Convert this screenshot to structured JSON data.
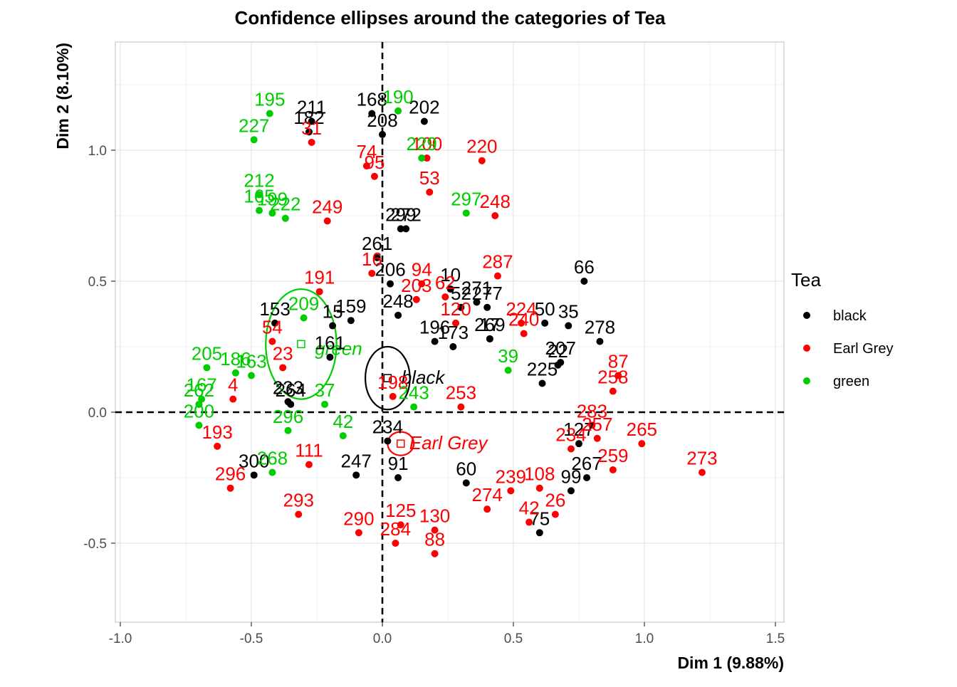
{
  "chart_data": {
    "type": "scatter",
    "title": "Confidence ellipses around the categories of Tea",
    "xlabel": "Dim 1 (9.88%)",
    "ylabel": "Dim 2 (8.10%)",
    "xlim": [
      -1.0,
      1.5
    ],
    "ylim": [
      -0.75,
      1.4
    ],
    "x_ticks": [
      -1.0,
      -0.5,
      0.0,
      0.5,
      1.0,
      1.5
    ],
    "x_tick_labels": [
      "-1.0",
      "-0.5",
      "0.0",
      "0.5",
      "1.0",
      "1.5"
    ],
    "y_ticks": [
      -0.5,
      0.0,
      0.5,
      1.0
    ],
    "y_tick_labels": [
      "-0.5",
      "0.0",
      "0.5",
      "1.0"
    ],
    "grid": true,
    "reference_lines": {
      "x": 0,
      "y": 0,
      "style": "dashed"
    },
    "legend": {
      "title": "Tea",
      "position": "right",
      "entries": [
        {
          "name": "black",
          "color": "#000000"
        },
        {
          "name": "Earl Grey",
          "color": "#ff0000"
        },
        {
          "name": "green",
          "color": "#00cd00"
        }
      ]
    },
    "series": [
      {
        "name": "black",
        "color": "#000000",
        "points": [
          {
            "label": "168",
            "x": -0.04,
            "y": 1.14
          },
          {
            "label": "202",
            "x": 0.16,
            "y": 1.11
          },
          {
            "label": "208",
            "x": 0.0,
            "y": 1.06
          },
          {
            "label": "211",
            "x": -0.27,
            "y": 1.11
          },
          {
            "label": "182",
            "x": -0.28,
            "y": 1.07
          },
          {
            "label": "272",
            "x": 0.09,
            "y": 0.7
          },
          {
            "label": "299",
            "x": 0.07,
            "y": 0.7
          },
          {
            "label": "261",
            "x": -0.02,
            "y": 0.59
          },
          {
            "label": "206",
            "x": 0.03,
            "y": 0.49
          },
          {
            "label": "10",
            "x": 0.26,
            "y": 0.47
          },
          {
            "label": "271",
            "x": 0.36,
            "y": 0.42
          },
          {
            "label": "277",
            "x": 0.4,
            "y": 0.4
          },
          {
            "label": "52",
            "x": 0.3,
            "y": 0.4
          },
          {
            "label": "66",
            "x": 0.77,
            "y": 0.5
          },
          {
            "label": "50",
            "x": 0.62,
            "y": 0.34
          },
          {
            "label": "35",
            "x": 0.71,
            "y": 0.33
          },
          {
            "label": "278",
            "x": 0.83,
            "y": 0.27
          },
          {
            "label": "207",
            "x": 0.68,
            "y": 0.19
          },
          {
            "label": "22",
            "x": 0.67,
            "y": 0.18
          },
          {
            "label": "225",
            "x": 0.61,
            "y": 0.11
          },
          {
            "label": "269",
            "x": 0.41,
            "y": 0.28
          },
          {
            "label": "17",
            "x": 0.41,
            "y": 0.28
          },
          {
            "label": "173",
            "x": 0.27,
            "y": 0.25
          },
          {
            "label": "196",
            "x": 0.2,
            "y": 0.27
          },
          {
            "label": "248",
            "x": 0.06,
            "y": 0.37
          },
          {
            "label": "159",
            "x": -0.12,
            "y": 0.35
          },
          {
            "label": "153",
            "x": -0.41,
            "y": 0.34
          },
          {
            "label": "15",
            "x": -0.19,
            "y": 0.33
          },
          {
            "label": "161",
            "x": -0.2,
            "y": 0.21
          },
          {
            "label": "233",
            "x": -0.36,
            "y": 0.04
          },
          {
            "label": "264",
            "x": -0.35,
            "y": 0.03
          },
          {
            "label": "300",
            "x": -0.49,
            "y": -0.24
          },
          {
            "label": "234",
            "x": 0.02,
            "y": -0.11
          },
          {
            "label": "247",
            "x": -0.1,
            "y": -0.24
          },
          {
            "label": "60",
            "x": 0.32,
            "y": -0.27
          },
          {
            "label": "267",
            "x": 0.78,
            "y": -0.25
          },
          {
            "label": "127",
            "x": 0.75,
            "y": -0.12
          },
          {
            "label": "99",
            "x": 0.72,
            "y": -0.3
          },
          {
            "label": "75",
            "x": 0.6,
            "y": -0.46
          },
          {
            "label": "91",
            "x": 0.06,
            "y": -0.25
          }
        ]
      },
      {
        "name": "Earl Grey",
        "color": "#ff0000",
        "points": [
          {
            "label": "31",
            "x": -0.27,
            "y": 1.03
          },
          {
            "label": "74",
            "x": -0.06,
            "y": 0.94
          },
          {
            "label": "95",
            "x": -0.03,
            "y": 0.9
          },
          {
            "label": "100",
            "x": 0.17,
            "y": 0.97
          },
          {
            "label": "220",
            "x": 0.38,
            "y": 0.96
          },
          {
            "label": "53",
            "x": 0.18,
            "y": 0.84
          },
          {
            "label": "248",
            "x": 0.43,
            "y": 0.75
          },
          {
            "label": "249",
            "x": -0.21,
            "y": 0.73
          },
          {
            "label": "16",
            "x": -0.04,
            "y": 0.53
          },
          {
            "label": "94",
            "x": 0.15,
            "y": 0.49
          },
          {
            "label": "287",
            "x": 0.44,
            "y": 0.52
          },
          {
            "label": "203",
            "x": 0.13,
            "y": 0.43
          },
          {
            "label": "62",
            "x": 0.24,
            "y": 0.44
          },
          {
            "label": "120",
            "x": 0.28,
            "y": 0.34
          },
          {
            "label": "224",
            "x": 0.53,
            "y": 0.34
          },
          {
            "label": "240",
            "x": 0.54,
            "y": 0.3
          },
          {
            "label": "191",
            "x": -0.24,
            "y": 0.46
          },
          {
            "label": "54",
            "x": -0.42,
            "y": 0.27
          },
          {
            "label": "23",
            "x": -0.38,
            "y": 0.17
          },
          {
            "label": "4",
            "x": -0.57,
            "y": 0.05
          },
          {
            "label": "87",
            "x": 0.9,
            "y": 0.14
          },
          {
            "label": "258",
            "x": 0.88,
            "y": 0.08
          },
          {
            "label": "253",
            "x": 0.3,
            "y": 0.02
          },
          {
            "label": "198",
            "x": 0.04,
            "y": 0.06
          },
          {
            "label": "265",
            "x": 0.99,
            "y": -0.12
          },
          {
            "label": "273",
            "x": 1.22,
            "y": -0.23
          },
          {
            "label": "259",
            "x": 0.88,
            "y": -0.22
          },
          {
            "label": "283",
            "x": 0.8,
            "y": -0.05
          },
          {
            "label": "257",
            "x": 0.82,
            "y": -0.1
          },
          {
            "label": "234",
            "x": 0.72,
            "y": -0.14
          },
          {
            "label": "293",
            "x": -0.32,
            "y": -0.39
          },
          {
            "label": "290",
            "x": -0.09,
            "y": -0.46
          },
          {
            "label": "125",
            "x": 0.07,
            "y": -0.43
          },
          {
            "label": "130",
            "x": 0.2,
            "y": -0.45
          },
          {
            "label": "284",
            "x": 0.05,
            "y": -0.5
          },
          {
            "label": "88",
            "x": 0.2,
            "y": -0.54
          },
          {
            "label": "274",
            "x": 0.4,
            "y": -0.37
          },
          {
            "label": "239",
            "x": 0.49,
            "y": -0.3
          },
          {
            "label": "108",
            "x": 0.6,
            "y": -0.29
          },
          {
            "label": "26",
            "x": 0.66,
            "y": -0.39
          },
          {
            "label": "42",
            "x": 0.56,
            "y": -0.42
          },
          {
            "label": "193",
            "x": -0.63,
            "y": -0.13
          },
          {
            "label": "296",
            "x": -0.58,
            "y": -0.29
          },
          {
            "label": "111",
            "x": -0.28,
            "y": -0.2
          }
        ]
      },
      {
        "name": "green",
        "color": "#00cd00",
        "points": [
          {
            "label": "195",
            "x": -0.43,
            "y": 1.14
          },
          {
            "label": "227",
            "x": -0.49,
            "y": 1.04
          },
          {
            "label": "190",
            "x": 0.06,
            "y": 1.15
          },
          {
            "label": "229",
            "x": 0.15,
            "y": 0.97
          },
          {
            "label": "212",
            "x": -0.47,
            "y": 0.83
          },
          {
            "label": "165",
            "x": -0.47,
            "y": 0.77
          },
          {
            "label": "199",
            "x": -0.42,
            "y": 0.76
          },
          {
            "label": "222",
            "x": -0.37,
            "y": 0.74
          },
          {
            "label": "297",
            "x": 0.32,
            "y": 0.76
          },
          {
            "label": "209",
            "x": -0.3,
            "y": 0.36
          },
          {
            "label": "39",
            "x": 0.48,
            "y": 0.16
          },
          {
            "label": "205",
            "x": -0.67,
            "y": 0.17
          },
          {
            "label": "186",
            "x": -0.56,
            "y": 0.15
          },
          {
            "label": "163",
            "x": -0.5,
            "y": 0.14
          },
          {
            "label": "167",
            "x": -0.69,
            "y": 0.05
          },
          {
            "label": "262",
            "x": -0.7,
            "y": 0.03
          },
          {
            "label": "243",
            "x": 0.12,
            "y": 0.02
          },
          {
            "label": "37",
            "x": -0.22,
            "y": 0.03
          },
          {
            "label": "200",
            "x": -0.7,
            "y": -0.05
          },
          {
            "label": "296",
            "x": -0.36,
            "y": -0.07
          },
          {
            "label": "42",
            "x": -0.15,
            "y": -0.09
          },
          {
            "label": "268",
            "x": -0.42,
            "y": -0.23
          }
        ]
      }
    ],
    "ellipses": [
      {
        "category": "black",
        "cx": 0.02,
        "cy": 0.13,
        "rx": 0.085,
        "ry": 0.12
      },
      {
        "category": "Earl Grey",
        "cx": 0.07,
        "cy": -0.12,
        "rx": 0.05,
        "ry": 0.045
      },
      {
        "category": "green",
        "cx": -0.31,
        "cy": 0.26,
        "rx": 0.135,
        "ry": 0.21
      }
    ],
    "category_labels": [
      {
        "label": "black",
        "x": 0.04,
        "y": 0.13,
        "color": "#000000"
      },
      {
        "label": "Earl Grey",
        "x": 0.07,
        "y": -0.12,
        "color": "#ff0000"
      },
      {
        "label": "green",
        "x": -0.29,
        "y": 0.24,
        "color": "#00cd00"
      }
    ]
  }
}
